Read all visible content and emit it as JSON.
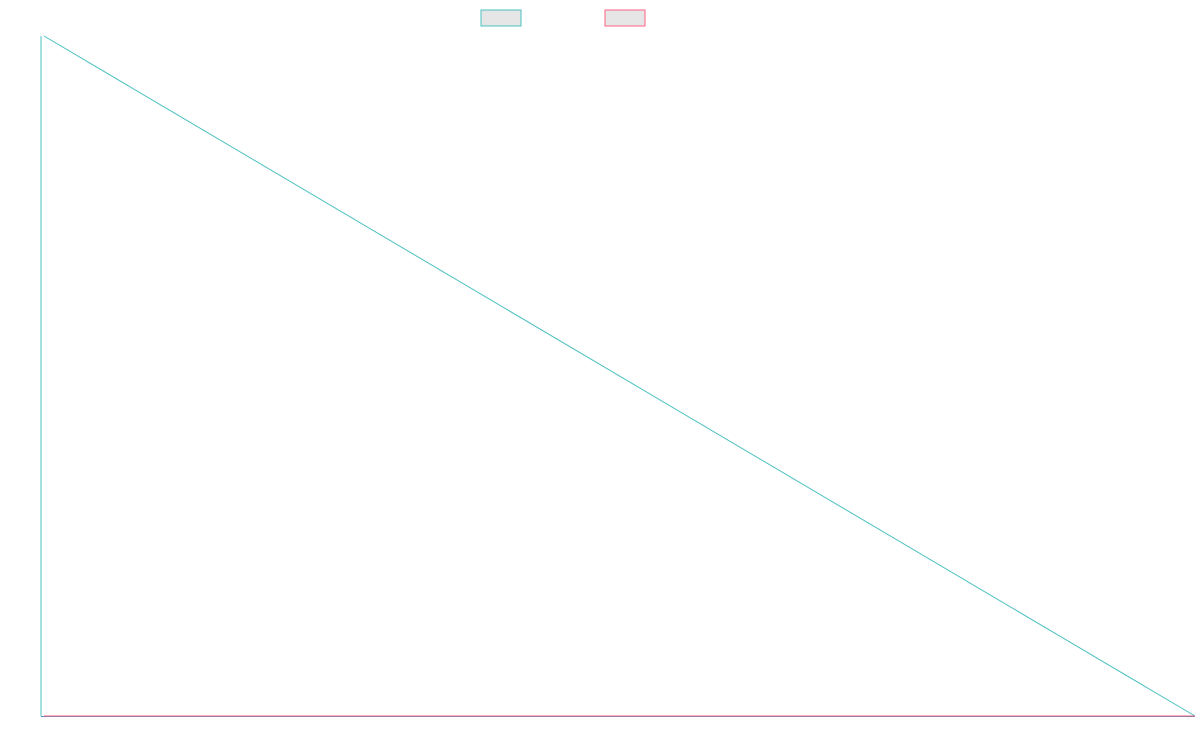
{
  "chart_data": {
    "type": "line",
    "title": "",
    "xlabel": "",
    "ylabel": "",
    "x": [
      0,
      1
    ],
    "xlim": [
      0,
      1
    ],
    "ylim": [
      0,
      1
    ],
    "grid": false,
    "legend_position": "top-center",
    "series": [
      {
        "values": [
          1,
          0
        ],
        "color": "#4bc0c0",
        "legend_fill": "#e6e6e6"
      },
      {
        "values": [
          0,
          0
        ],
        "color": "#ff6384",
        "legend_fill": "#e6e6e6"
      }
    ],
    "axis_color": "#4bc0c0"
  }
}
